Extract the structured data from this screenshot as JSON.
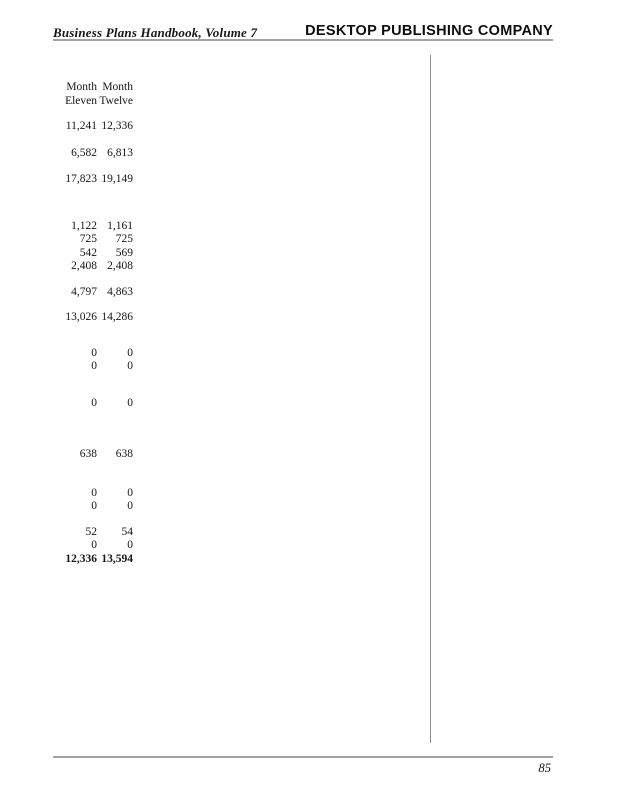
{
  "header": {
    "left_title": "Business Plans Handbook, Volume 7",
    "right_title": "DESKTOP PUBLISHING COMPANY"
  },
  "footer": {
    "page_number": "85"
  },
  "colors": {
    "rule_gray": "#a3a3a3",
    "divider_gray": "#8c8c8c",
    "text": "#161616"
  },
  "table": {
    "column_headers": [
      {
        "line1": "Month",
        "line2": "Eleven"
      },
      {
        "line1": "Month",
        "line2": "Twelve"
      }
    ],
    "groups": [
      {
        "rows": [
          {
            "c1": "11,241",
            "c2": "12,336"
          }
        ]
      },
      {
        "rows": [
          {
            "c1": "6,582",
            "c2": "6,813"
          }
        ]
      },
      {
        "rows": [
          {
            "c1": "17,823",
            "c2": "19,149"
          }
        ]
      },
      {
        "rows": [
          {
            "c1": "1,122",
            "c2": "1,161"
          },
          {
            "c1": "725",
            "c2": "725"
          },
          {
            "c1": "542",
            "c2": "569"
          },
          {
            "c1": "2,408",
            "c2": "2,408"
          }
        ]
      },
      {
        "rows": [
          {
            "c1": "4,797",
            "c2": "4,863"
          }
        ]
      },
      {
        "rows": [
          {
            "c1": "13,026",
            "c2": "14,286"
          }
        ]
      },
      {
        "rows": [
          {
            "c1": "0",
            "c2": "0"
          },
          {
            "c1": "0",
            "c2": "0"
          }
        ]
      },
      {
        "rows": [
          {
            "c1": "0",
            "c2": "0"
          }
        ]
      },
      {
        "rows": [
          {
            "c1": "638",
            "c2": "638"
          }
        ]
      },
      {
        "rows": [
          {
            "c1": "0",
            "c2": "0"
          },
          {
            "c1": "0",
            "c2": "0"
          }
        ]
      },
      {
        "rows": [
          {
            "c1": "52",
            "c2": "54"
          },
          {
            "c1": "0",
            "c2": "0"
          },
          {
            "c1": "12,336",
            "c2": "13,594",
            "bold": true
          }
        ]
      }
    ]
  }
}
